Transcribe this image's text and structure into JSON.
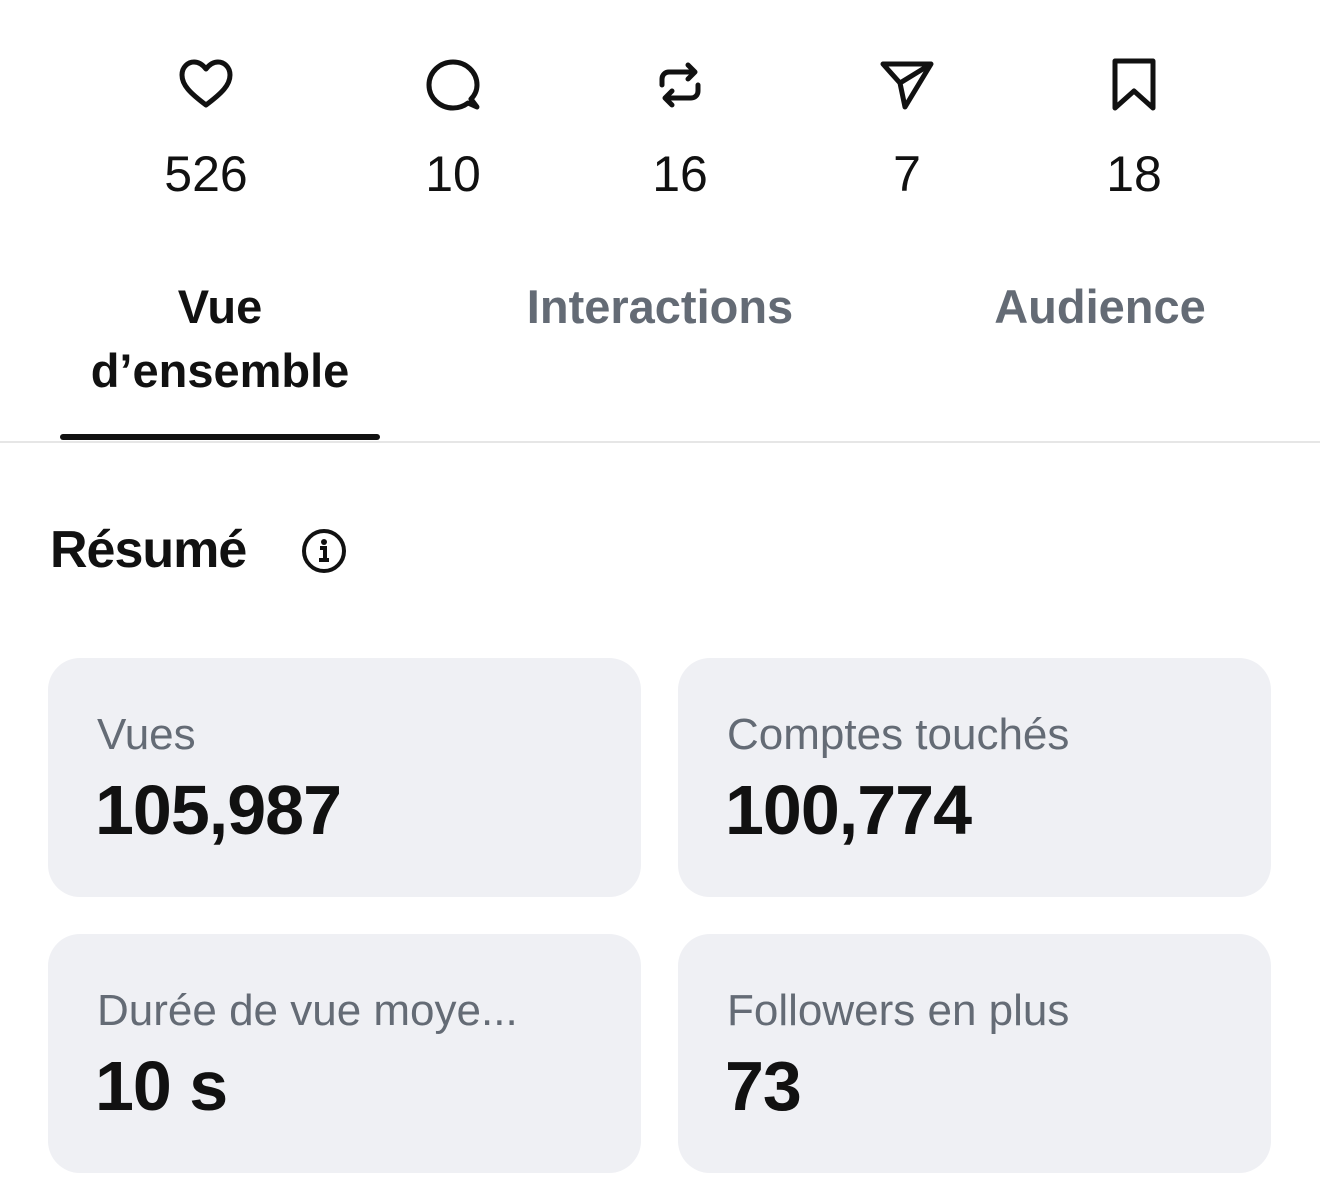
{
  "stats": [
    {
      "icon": "like",
      "count": 526
    },
    {
      "icon": "comment",
      "count": 10
    },
    {
      "icon": "repost",
      "count": 16
    },
    {
      "icon": "share",
      "count": 7
    },
    {
      "icon": "save",
      "count": 18
    }
  ],
  "tabs": [
    {
      "label": "Vue d’ensemble",
      "active": true
    },
    {
      "label": "Interactions",
      "active": false
    },
    {
      "label": "Audience",
      "active": false
    }
  ],
  "summary": {
    "title": "Résumé",
    "cards": [
      {
        "label": "Vues",
        "value": "105,987"
      },
      {
        "label": "Comptes touchés",
        "value": "100,774"
      },
      {
        "label": "Durée de vue moye...",
        "value": "10 s"
      },
      {
        "label": "Followers en plus",
        "value": "73"
      }
    ]
  }
}
